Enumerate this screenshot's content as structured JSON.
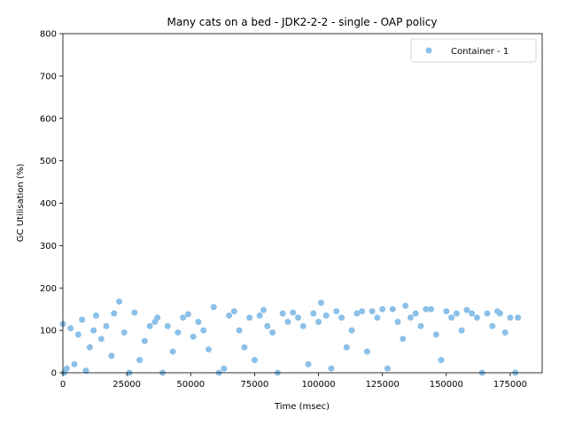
{
  "chart_data": {
    "type": "scatter",
    "title": "Many cats on a bed - JDK2-2-2 - single -  OAP policy",
    "xlabel": "Time (msec)",
    "ylabel": "GC Utilisation (%)",
    "xlim": [
      0,
      187500
    ],
    "ylim": [
      0,
      800
    ],
    "xticks": [
      0,
      25000,
      50000,
      75000,
      100000,
      125000,
      150000,
      175000
    ],
    "yticks": [
      0,
      100,
      200,
      300,
      400,
      500,
      600,
      700,
      800
    ],
    "grid": false,
    "legend_position": "top-right",
    "series": [
      {
        "name": "Container - 1",
        "color": "#8bc0e8",
        "x": [
          0,
          500,
          1500,
          3000,
          4500,
          6000,
          7500,
          9000,
          10500,
          12000,
          13000,
          15000,
          17000,
          19000,
          20000,
          22000,
          24000,
          26000,
          28000,
          30000,
          32000,
          34000,
          36000,
          37000,
          39000,
          41000,
          43000,
          45000,
          47000,
          49000,
          51000,
          53000,
          55000,
          57000,
          59000,
          61000,
          63000,
          65000,
          67000,
          69000,
          71000,
          73000,
          75000,
          77000,
          78500,
          80000,
          82000,
          84000,
          86000,
          88000,
          90000,
          92000,
          94000,
          96000,
          98000,
          100000,
          101000,
          103000,
          105000,
          107000,
          109000,
          111000,
          113000,
          115000,
          117000,
          119000,
          121000,
          123000,
          125000,
          127000,
          129000,
          131000,
          133000,
          134000,
          136000,
          138000,
          140000,
          142000,
          144000,
          146000,
          148000,
          150000,
          152000,
          154000,
          156000,
          158000,
          160000,
          162000,
          164000,
          166000,
          168000,
          170000,
          171000,
          173000,
          175000,
          177000,
          178000
        ],
        "y": [
          115,
          0,
          10,
          105,
          20,
          90,
          125,
          5,
          60,
          100,
          135,
          80,
          110,
          40,
          140,
          168,
          95,
          0,
          142,
          30,
          75,
          110,
          120,
          130,
          0,
          110,
          50,
          95,
          130,
          138,
          85,
          120,
          100,
          55,
          155,
          0,
          10,
          135,
          145,
          100,
          60,
          130,
          30,
          135,
          148,
          110,
          95,
          0,
          140,
          120,
          142,
          130,
          110,
          20,
          140,
          120,
          165,
          135,
          10,
          145,
          130,
          60,
          100,
          140,
          145,
          50,
          145,
          130,
          150,
          10,
          150,
          120,
          80,
          158,
          130,
          140,
          110,
          150,
          150,
          90,
          30,
          145,
          130,
          140,
          100,
          148,
          140,
          130,
          0,
          140,
          110,
          145,
          140,
          95,
          130,
          0,
          130
        ]
      }
    ]
  }
}
